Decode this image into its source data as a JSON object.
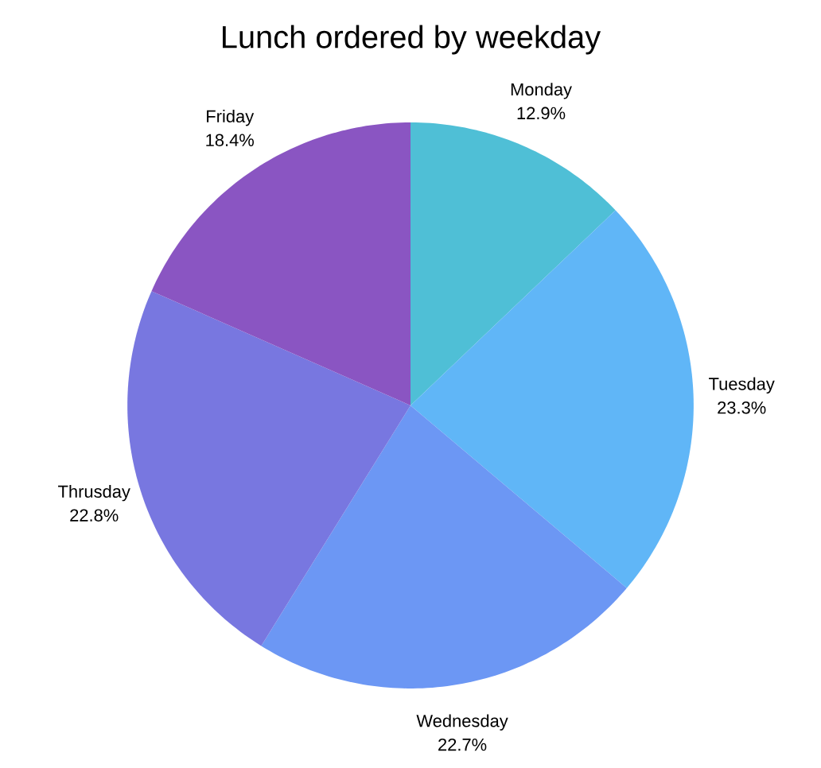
{
  "chart_data": {
    "type": "pie",
    "title": "Lunch ordered by weekday",
    "categories": [
      "Monday",
      "Tuesday",
      "Wednesday",
      "Thrusday",
      "Friday"
    ],
    "values": [
      12.9,
      23.3,
      22.7,
      22.8,
      18.4
    ],
    "value_labels": [
      "12.9%",
      "23.3%",
      "22.7%",
      "22.8%",
      "18.4%"
    ],
    "colors": [
      "#4fbfd6",
      "#60b6f7",
      "#6c97f4",
      "#7877e0",
      "#8a55c2"
    ]
  }
}
